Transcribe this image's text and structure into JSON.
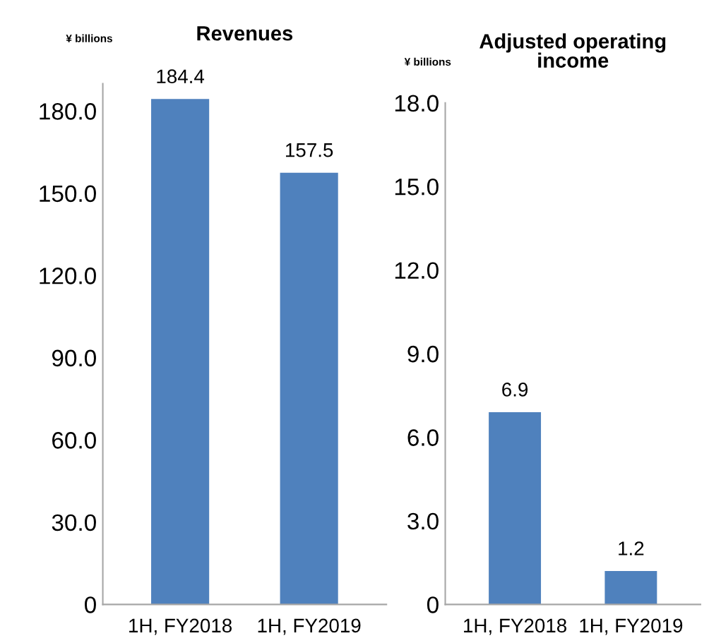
{
  "chart_data": [
    {
      "type": "bar",
      "title": "Revenues",
      "ylabel": "¥ billions",
      "categories": [
        "1H, FY2018",
        "1H, FY2019"
      ],
      "values": [
        184.4,
        157.5
      ],
      "color": "#4f81bd",
      "ylim": [
        0,
        190
      ],
      "yticks": [
        0,
        {
          "value": 30,
          "label": "30.0"
        },
        {
          "value": 60,
          "label": "60.0"
        },
        {
          "value": 90,
          "label": "90.0"
        },
        {
          "value": 120,
          "label": "120.0"
        },
        {
          "value": 150,
          "label": "150.0"
        },
        {
          "value": 180,
          "label": "180.0"
        }
      ],
      "data_labels": true,
      "grid": false,
      "legend": false
    },
    {
      "type": "bar",
      "title": "Adjusted operating income",
      "ylabel": "¥ billions",
      "categories": [
        "1H, FY2018",
        "1H, FY2019"
      ],
      "values": [
        6.9,
        1.2
      ],
      "color": "#4f81bd",
      "ylim": [
        0,
        18
      ],
      "yticks": [
        0,
        {
          "value": 3,
          "label": "3.0"
        },
        {
          "value": 6,
          "label": "6.0"
        },
        {
          "value": 9,
          "label": "9.0"
        },
        {
          "value": 12,
          "label": "12.0"
        },
        {
          "value": 15,
          "label": "15.0"
        },
        {
          "value": 18,
          "label": "18.0"
        }
      ],
      "data_labels": true,
      "grid": false,
      "legend": false
    }
  ]
}
